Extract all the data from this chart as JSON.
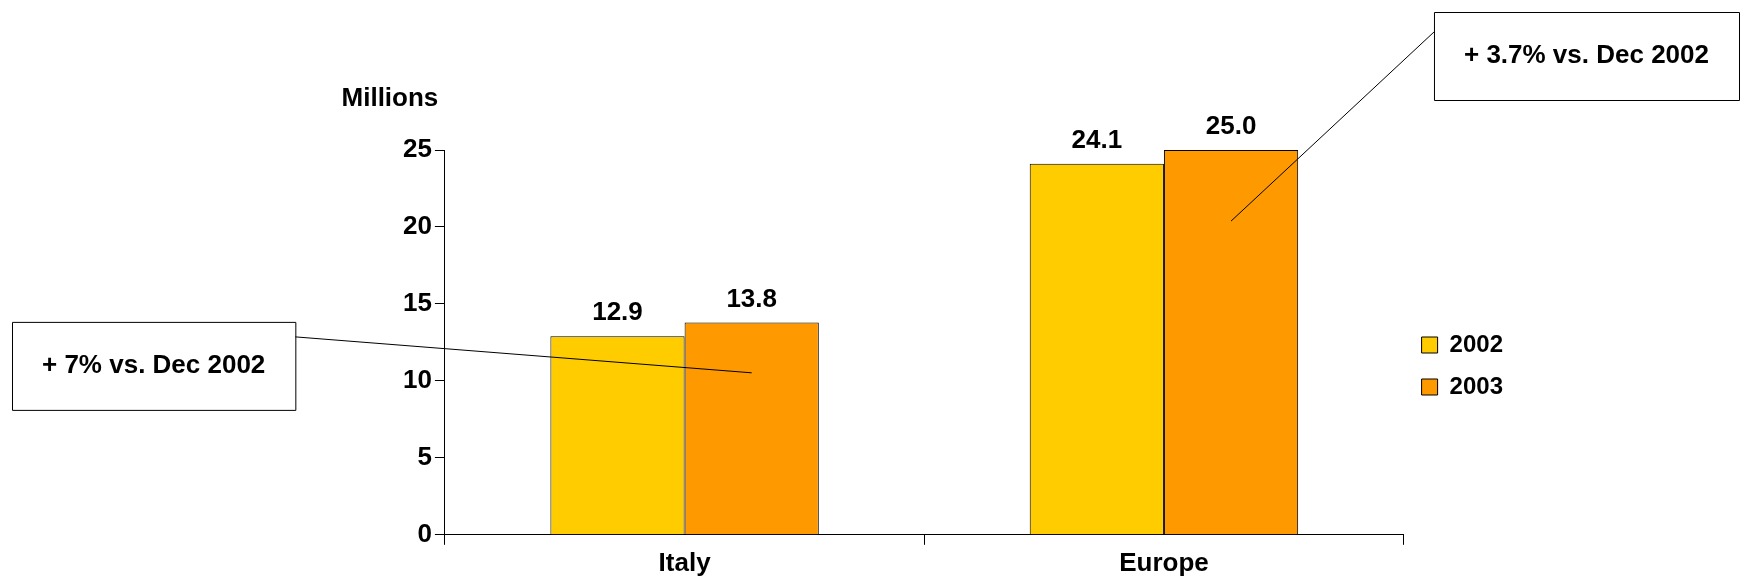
{
  "chart_data": {
    "type": "bar",
    "ylabel": "Millions",
    "categories": [
      "Italy",
      "Europe"
    ],
    "series": [
      {
        "name": "2002",
        "color": "#ffcc00",
        "values": [
          12.9,
          24.1
        ],
        "value_labels": [
          "12.9",
          "24.1"
        ]
      },
      {
        "name": "2003",
        "color": "#ff9900",
        "values": [
          13.8,
          25.0
        ],
        "value_labels": [
          "13.8",
          "25.0"
        ]
      }
    ],
    "ylim": [
      0,
      25
    ],
    "yticks": [
      0,
      5,
      10,
      15,
      20,
      25
    ],
    "grid": false,
    "legend": "right",
    "annotations": [
      "+ 7% vs. Dec 2002",
      "+ 3.7% vs. Dec 2002"
    ]
  }
}
